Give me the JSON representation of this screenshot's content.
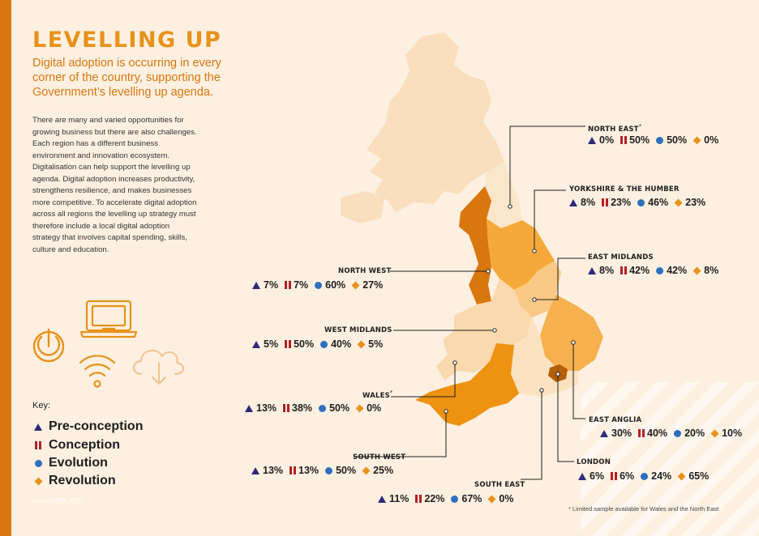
{
  "header": {
    "title": "LEVELLING UP",
    "subtitle": "Digital adoption is occurring in every corner of the country, supporting the Government’s levelling up agenda."
  },
  "body_text": "There are many and varied opportunities for growing business but there are also challenges. Each region has a different business environment and innovation ecosystem. Digitalisation can help support the levelling up agenda. Digital adoption increases productivity, strengthens resilience, and makes businesses more competitive. To accelerate digital adoption across all regions the levelling up strategy must therefore include a local digital adoption strategy that involves capital spending, skills, culture and education.",
  "icons": [
    "power-icon",
    "laptop-icon",
    "wifi-icon",
    "cloud-download-icon"
  ],
  "key": {
    "label": "Key:",
    "items": [
      {
        "symbol": "triangle",
        "label": "Pre-conception",
        "color": "#2e2a7a"
      },
      {
        "symbol": "bars",
        "label": "Conception",
        "color": "#b52025"
      },
      {
        "symbol": "circle",
        "label": "Evolution",
        "color": "#2e6fbf"
      },
      {
        "symbol": "diamond",
        "label": "Revolution",
        "color": "#e8921a"
      }
    ]
  },
  "source": "Source: DMI, BCC",
  "footnote": "* Limited sample available for Wales and the North East",
  "colors": {
    "accent": "#e8921a",
    "dark_accent": "#d9770f",
    "background": "#fdf0e1",
    "map_base": "#f9dfbd"
  },
  "regions": {
    "north_east": {
      "name": "NORTH EAST",
      "note": "*",
      "pre": "0%",
      "con": "50%",
      "evo": "50%",
      "rev": "0%"
    },
    "yorkshire": {
      "name": "YORKSHIRE & THE HUMBER",
      "pre": "8%",
      "con": "23%",
      "evo": "46%",
      "rev": "23%"
    },
    "east_midlands": {
      "name": "EAST MIDLANDS",
      "pre": "8%",
      "con": "42%",
      "evo": "42%",
      "rev": "8%"
    },
    "north_west": {
      "name": "NORTH WEST",
      "pre": "7%",
      "con": "7%",
      "evo": "60%",
      "rev": "27%"
    },
    "west_midlands": {
      "name": "WEST MIDLANDS",
      "pre": "5%",
      "con": "50%",
      "evo": "40%",
      "rev": "5%"
    },
    "wales": {
      "name": "WALES",
      "note": "*",
      "pre": "13%",
      "con": "38%",
      "evo": "50%",
      "rev": "0%"
    },
    "east_anglia": {
      "name": "EAST ANGLIA",
      "pre": "30%",
      "con": "40%",
      "evo": "20%",
      "rev": "10%"
    },
    "south_west": {
      "name": "SOUTH WEST",
      "pre": "13%",
      "con": "13%",
      "evo": "50%",
      "rev": "25%"
    },
    "london": {
      "name": "LONDON",
      "pre": "6%",
      "con": "6%",
      "evo": "24%",
      "rev": "65%"
    },
    "south_east": {
      "name": "SOUTH EAST",
      "pre": "11%",
      "con": "22%",
      "evo": "67%",
      "rev": "0%"
    }
  }
}
